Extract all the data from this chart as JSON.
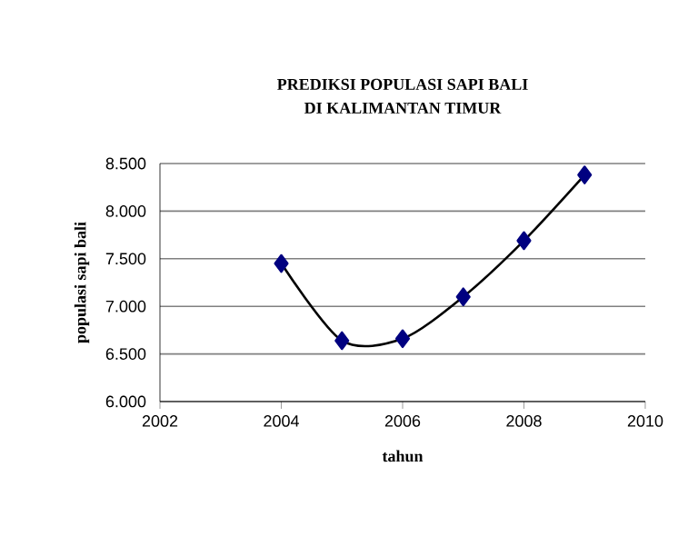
{
  "chart_data": {
    "type": "line",
    "title": "PREDIKSI POPULASI SAPI BALI",
    "subtitle": "DI KALIMANTAN TIMUR",
    "xlabel": "tahun",
    "ylabel": "populasi sapi bali",
    "x": [
      2004,
      2005,
      2006,
      2007,
      2008,
      2009
    ],
    "series": [
      {
        "color": "#000080",
        "values": [
          7450,
          6640,
          6660,
          7100,
          7690,
          8380
        ]
      }
    ],
    "xlim": [
      2002,
      2010
    ],
    "xticks": [
      2002,
      2004,
      2006,
      2008,
      2010
    ],
    "ylim": [
      6000,
      8500
    ],
    "yticks": [
      {
        "value": 6000,
        "label": "6.000"
      },
      {
        "value": 6500,
        "label": "6.500"
      },
      {
        "value": 7000,
        "label": "7.000"
      },
      {
        "value": 7500,
        "label": "7.500"
      },
      {
        "value": 8000,
        "label": "8.000"
      },
      {
        "value": 8500,
        "label": "8.500"
      }
    ],
    "grid": "y",
    "marker": "diamond",
    "line_style": "solid"
  }
}
